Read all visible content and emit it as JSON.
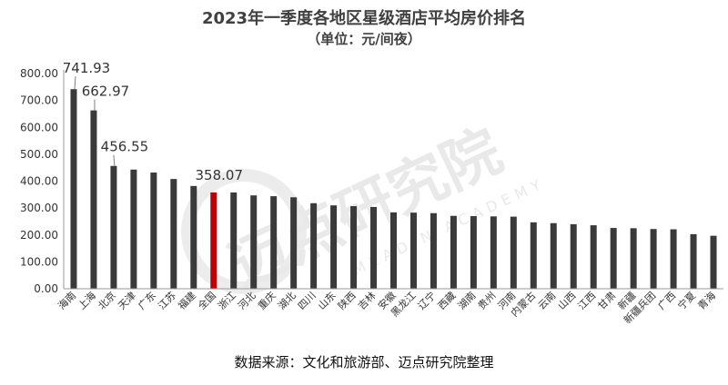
{
  "header": {
    "title": "2023年一季度各地区星级酒店平均房价排名",
    "subtitle": "（单位：元/间夜）"
  },
  "footer": {
    "source": "数据来源：文化和旅游部、迈点研究院整理"
  },
  "watermark": {
    "brand": "迈点研究院",
    "brand_en": "MEADIN ACADEMY"
  },
  "colors": {
    "bar": "#3a3a3a",
    "highlight": "#c00000",
    "axis": "#9a9a9a",
    "watermark": "#e9e9e9"
  },
  "chart_data": {
    "type": "bar",
    "title": "2023年一季度各地区星级酒店平均房价排名",
    "subtitle": "（单位：元/间夜）",
    "xlabel": "",
    "ylabel": "",
    "ylim": [
      0,
      800
    ],
    "yticks": [
      "0.00",
      "100.00",
      "200.00",
      "300.00",
      "400.00",
      "500.00",
      "600.00",
      "700.00",
      "800.00"
    ],
    "grid": false,
    "highlight_category": "全国",
    "categories": [
      "海南",
      "上海",
      "北京",
      "天津",
      "广东",
      "江苏",
      "福建",
      "全国",
      "浙江",
      "河北",
      "重庆",
      "湖北",
      "四川",
      "山东",
      "陕西",
      "吉林",
      "安徽",
      "黑龙江",
      "辽宁",
      "西藏",
      "湖南",
      "贵州",
      "河南",
      "内蒙古",
      "云南",
      "山西",
      "江西",
      "甘肃",
      "新疆",
      "新疆兵团",
      "广西",
      "宁夏",
      "青海"
    ],
    "values": [
      741.93,
      662.97,
      456.55,
      443,
      432,
      408,
      382,
      358.07,
      358,
      347,
      344,
      340,
      318,
      310,
      307,
      304,
      284,
      283,
      281,
      271,
      270,
      269,
      268,
      247,
      244,
      240,
      236,
      226,
      225,
      222,
      221,
      203,
      197
    ],
    "data_labels": [
      {
        "category": "海南",
        "text": "741.93"
      },
      {
        "category": "上海",
        "text": "662.97"
      },
      {
        "category": "北京",
        "text": "456.55"
      },
      {
        "category": "全国",
        "text": "358.07"
      }
    ]
  }
}
